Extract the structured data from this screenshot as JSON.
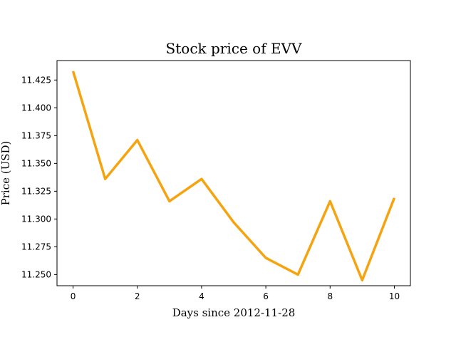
{
  "chart_data": {
    "type": "line",
    "title": "Stock price of EVV",
    "xlabel": "Days since 2012-11-28",
    "ylabel": "Price (USD)",
    "xlim": [
      -0.5,
      10.5
    ],
    "ylim": [
      11.24,
      11.4425
    ],
    "xticks": [
      0,
      2,
      4,
      6,
      8,
      10
    ],
    "yticks": [
      11.25,
      11.275,
      11.3,
      11.325,
      11.35,
      11.375,
      11.4,
      11.425
    ],
    "grid": false,
    "series": [
      {
        "color": "#f5a30f",
        "x": [
          0,
          1,
          2,
          3,
          4,
          5,
          6,
          7,
          8,
          9,
          10
        ],
        "y": [
          11.433,
          11.336,
          11.371,
          11.316,
          11.336,
          11.297,
          11.265,
          11.25,
          11.316,
          11.245,
          11.319
        ]
      }
    ]
  }
}
